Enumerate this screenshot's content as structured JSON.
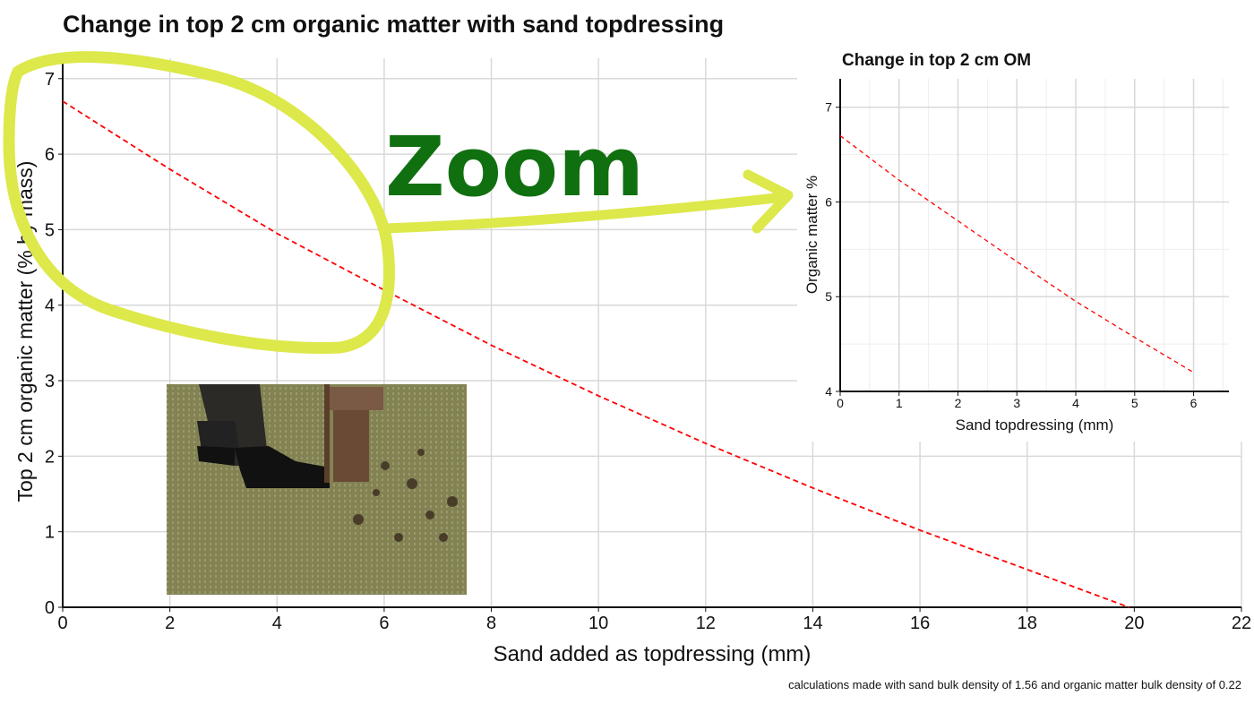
{
  "chart_data": [
    {
      "type": "line",
      "title": "Change in top 2 cm organic matter with sand topdressing",
      "xlabel": "Sand added as topdressing (mm)",
      "ylabel": "Top 2 cm organic matter (% by mass)",
      "xlim": [
        0,
        22
      ],
      "ylim": [
        0,
        7.27
      ],
      "xticks": [
        0,
        2,
        4,
        6,
        8,
        10,
        12,
        14,
        16,
        18,
        20,
        22
      ],
      "yticks": [
        0,
        1,
        2,
        3,
        4,
        5,
        6,
        7
      ],
      "grid": true,
      "line_color": "#ff0000",
      "line_style": "dashed",
      "x": [
        0,
        2,
        4,
        6,
        8,
        10,
        12,
        14,
        16,
        18,
        19.9
      ],
      "y": [
        6.7,
        5.8,
        4.95,
        4.2,
        3.47,
        2.8,
        2.17,
        1.58,
        1.02,
        0.5,
        0
      ],
      "caption": "calculations made with sand bulk density of 1.56 and organic matter bulk density of 0.22"
    },
    {
      "type": "line",
      "title": "Change in top 2 cm OM",
      "xlabel": "Sand topdressing (mm)",
      "ylabel": "Organic matter %",
      "xlim": [
        0,
        6.6
      ],
      "ylim": [
        4,
        7.3
      ],
      "xticks": [
        0,
        1,
        2,
        3,
        4,
        5,
        6
      ],
      "yticks": [
        4,
        5,
        6,
        7
      ],
      "grid": true,
      "line_color": "#ff0000",
      "line_style": "dashed",
      "x": [
        0,
        1,
        2,
        3,
        4,
        5,
        6
      ],
      "y": [
        6.7,
        6.23,
        5.8,
        5.37,
        4.95,
        4.57,
        4.2
      ]
    }
  ],
  "annotation": {
    "text": "Zoom",
    "text_color": "#107010",
    "highlight_color": "#dde84a"
  },
  "photo": {
    "subject": "hollow-tine aeration of turf"
  }
}
